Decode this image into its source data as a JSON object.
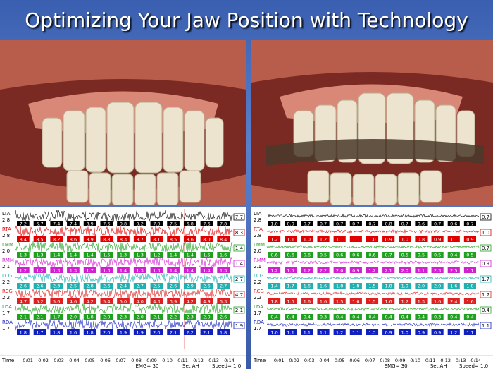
{
  "title": "Optimizing Your Jaw Position with Technology",
  "emg_panels": [
    {
      "channels": [
        {
          "name": "LTA",
          "scale": "2.8",
          "color": "#000000",
          "values": [
            "7.2",
            "6.7",
            "7.4",
            "7.4",
            "8.9",
            "7.6",
            "9.8",
            "9.2",
            "7.0",
            "7.5",
            "6.8",
            "7.6",
            "7.8"
          ],
          "end_value": "7.7"
        },
        {
          "name": "RTA",
          "scale": "2.8",
          "color": "#e00000",
          "values": [
            "8.4",
            "8.5",
            "8.2",
            "8.6",
            "8.9",
            "8.8",
            "8.3",
            "8.7",
            "8.1",
            "8.5",
            "8.6",
            "8.0",
            "8.4"
          ],
          "end_value": "8.3"
        },
        {
          "name": "LMM",
          "scale": "2.0",
          "color": "#20a020",
          "values": [
            "1.3",
            "1.3",
            "1.4",
            "1.4",
            "1.4",
            "1.5",
            "1.3",
            "1.3",
            "1.2",
            "1.4",
            "1.4",
            "1.5",
            "1.6"
          ],
          "end_value": "1.4"
        },
        {
          "name": "RMM",
          "scale": "2.1",
          "color": "#d020d0",
          "values": [
            "1.2",
            "1.2",
            "1.3",
            "1.3",
            "1.7",
            "1.3",
            "1.4",
            "1.3",
            "1.3",
            "1.4",
            "1.4",
            "1.4",
            "1.3"
          ],
          "end_value": "1.4"
        },
        {
          "name": "LCG",
          "scale": "2.2",
          "color": "#20b0b0",
          "values": [
            "2.6",
            "2.6",
            "2.3",
            "2.5",
            "2.8",
            "2.6",
            "2.4",
            "2.7",
            "2.5",
            "2.6",
            "2.9",
            "2.6",
            "2.7"
          ],
          "end_value": "2.7"
        },
        {
          "name": "RCG",
          "scale": "2.2",
          "color": "#e02020",
          "values": [
            "4.7",
            "5.2",
            "5.6",
            "4.6",
            "4.2",
            "5.4",
            "5.0",
            "4.0",
            "4.3",
            "3.9",
            "4.2",
            "4.9",
            "5.3"
          ],
          "end_value": "4.7"
        },
        {
          "name": "LDA",
          "scale": "1.7",
          "color": "#20a020",
          "values": [
            "2.1",
            "2.1",
            "1.7",
            "2.0",
            "1.8",
            "2.0",
            "2.3",
            "2.0",
            "2.1",
            "2.2",
            "2.3",
            "2.0",
            "2.6"
          ],
          "end_value": "2.1"
        },
        {
          "name": "RDA",
          "scale": "1.7",
          "color": "#1020c0",
          "values": [
            "1.8",
            "1.7",
            "1.8",
            "1.6",
            "1.8",
            "2.0",
            "1.9",
            "1.9",
            "2.0",
            "2.1",
            "2.2",
            "2.1",
            "1.8"
          ],
          "end_value": "1.9"
        }
      ],
      "time_label": "Time",
      "time_ticks": [
        "0:01",
        "0:02",
        "0:03",
        "0:04",
        "0:05",
        "0:06",
        "0:07",
        "0:08",
        "0:09",
        "0:10",
        "0:11",
        "0:12",
        "0:13",
        "0:14"
      ],
      "footer": [
        "EMG= 30",
        "Set AH",
        "Speed= 1.0"
      ]
    },
    {
      "channels": [
        {
          "name": "LTA",
          "scale": "2.8",
          "color": "#000000",
          "values": [
            "1.0",
            "0.9",
            "0.7",
            "0.7",
            "0.7",
            "0.7",
            "0.7",
            "0.8",
            "0.7",
            "0.6",
            "0.7",
            "0.6",
            "0.7"
          ],
          "end_value": "0.7"
        },
        {
          "name": "RTA",
          "scale": "2.8",
          "color": "#e00000",
          "values": [
            "1.2",
            "1.1",
            "1.0",
            "1.2",
            "1.1",
            "1.1",
            "1.0",
            "0.9",
            "1.0",
            "0.8",
            "0.9",
            "1.1",
            "0.9"
          ],
          "end_value": "1.0"
        },
        {
          "name": "LMM",
          "scale": "2.0",
          "color": "#20a020",
          "values": [
            "0.6",
            "0.6",
            "0.6",
            "0.5",
            "0.6",
            "0.6",
            "0.6",
            "0.7",
            "0.5",
            "0.5",
            "0.5",
            "0.4",
            "0.5"
          ],
          "end_value": "0.7"
        },
        {
          "name": "RMM",
          "scale": "2.1",
          "color": "#d020d0",
          "values": [
            "1.2",
            "1.5",
            "1.2",
            "2.2",
            "2.0",
            "0.9",
            "1.2",
            "2.1",
            "2.0",
            "1.1",
            "2.3",
            "2.5",
            "1.1"
          ],
          "end_value": "0.9"
        },
        {
          "name": "LCG",
          "scale": "2.2",
          "color": "#20b0b0",
          "values": [
            "1.4",
            "1.7",
            "1.6",
            "1.6",
            "1.8",
            "1.8",
            "1.5",
            "1.8",
            "1.9",
            "2.0",
            "2.0",
            "1.6",
            "1.8"
          ],
          "end_value": "1.7"
        },
        {
          "name": "RCG",
          "scale": "2.2",
          "color": "#e02020",
          "values": [
            "1.8",
            "1.5",
            "1.6",
            "1.6",
            "1.5",
            "1.6",
            "1.5",
            "1.6",
            "1.7",
            "1.3",
            "1.6",
            "2.4",
            "1.6"
          ],
          "end_value": "1.7"
        },
        {
          "name": "LDA",
          "scale": "1.7",
          "color": "#20a020",
          "values": [
            "0.4",
            "0.4",
            "0.4",
            "0.3",
            "0.4",
            "0.4",
            "0.4",
            "0.4",
            "0.4",
            "0.4",
            "0.3",
            "0.4",
            "0.4"
          ],
          "end_value": "0.4"
        },
        {
          "name": "RDA",
          "scale": "1.7",
          "color": "#1020c0",
          "values": [
            "1.0",
            "1.1",
            "1.1",
            "1.1",
            "1.2",
            "1.1",
            "1.3",
            "0.9",
            "1.0",
            "0.9",
            "0.9",
            "1.2",
            "1.1"
          ],
          "end_value": "1.1"
        }
      ],
      "time_label": "Time",
      "time_ticks": [
        "0:01",
        "0:02",
        "0:03",
        "0:04",
        "0:05",
        "0:06",
        "0:07",
        "0:08",
        "0:09",
        "0:10",
        "0:11",
        "0:12",
        "0:13",
        "0:14"
      ],
      "footer": [
        "EMG= 30",
        "Set AH",
        "Speed= 1.0"
      ]
    }
  ]
}
